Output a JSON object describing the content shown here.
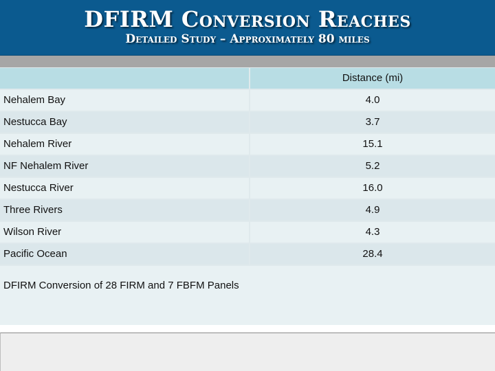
{
  "slide": {
    "title": "DFIRM Conversion Reaches",
    "subtitle": "Detailed Study – Approximately 80 miles"
  },
  "table": {
    "column_header": "Distance (mi)",
    "rows": [
      {
        "reach": "Nehalem Bay",
        "distance": "4.0"
      },
      {
        "reach": "Nestucca Bay",
        "distance": "3.7"
      },
      {
        "reach": "Nehalem River",
        "distance": "15.1"
      },
      {
        "reach": "NF Nehalem River",
        "distance": "5.2"
      },
      {
        "reach": "Nestucca River",
        "distance": "16.0"
      },
      {
        "reach": "Three Rivers",
        "distance": "4.9"
      },
      {
        "reach": "Wilson River",
        "distance": "4.3"
      },
      {
        "reach": "Pacific Ocean",
        "distance": "28.4"
      }
    ],
    "footer_note": "DFIRM Conversion of 28 FIRM and 7 FBFM Panels"
  },
  "colors": {
    "title_bar": "#0b5a8f",
    "header_fill": "#b8dde4",
    "row_light": "#e8f1f3",
    "row_dark": "#dbe7eb"
  }
}
